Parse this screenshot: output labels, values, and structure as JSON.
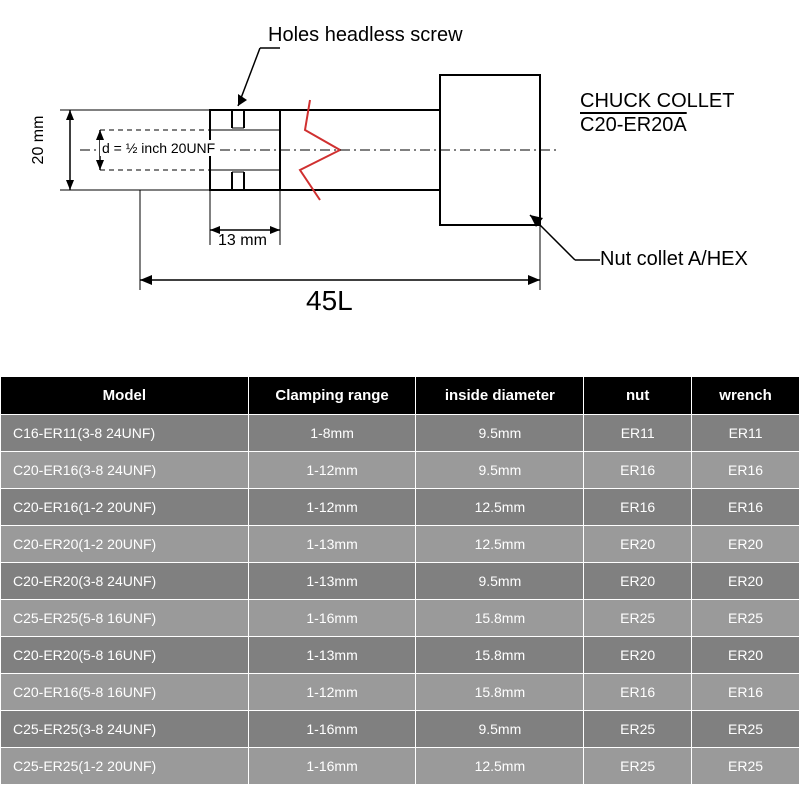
{
  "diagram": {
    "label_holes": "Holes headless screw",
    "label_thread": "d = ½ inch 20UNF",
    "label_height": "20 mm",
    "label_shank": "13 mm",
    "label_length": "45L",
    "label_title1": "CHUCK COLLET",
    "label_title2": "C20-ER20A",
    "label_nut": "Nut collet A/HEX",
    "colors": {
      "outline": "#000000",
      "break_line": "#d03030",
      "background": "#ffffff"
    },
    "fonts": {
      "label_size": 20,
      "dim_size": 16,
      "big_size": 28
    }
  },
  "table": {
    "columns": [
      "Model",
      "Clamping range",
      "inside diameter",
      "nut",
      "wrench"
    ],
    "col_widths": [
      "31%",
      "21%",
      "21%",
      "13.5%",
      "13.5%"
    ],
    "header_bg": "#000000",
    "header_fg": "#ffffff",
    "row_bg_a": "#808080",
    "row_bg_b": "#9a9a9a",
    "cell_fg": "#ffffff",
    "border_color": "#ffffff",
    "rows": [
      [
        "C16-ER11(3-8 24UNF)",
        "1-8mm",
        "9.5mm",
        "ER11",
        "ER11"
      ],
      [
        "C20-ER16(3-8 24UNF)",
        "1-12mm",
        "9.5mm",
        "ER16",
        "ER16"
      ],
      [
        "C20-ER16(1-2 20UNF)",
        "1-12mm",
        "12.5mm",
        "ER16",
        "ER16"
      ],
      [
        "C20-ER20(1-2 20UNF)",
        "1-13mm",
        "12.5mm",
        "ER20",
        "ER20"
      ],
      [
        "C20-ER20(3-8 24UNF)",
        "1-13mm",
        "9.5mm",
        "ER20",
        "ER20"
      ],
      [
        "C25-ER25(5-8 16UNF)",
        "1-16mm",
        "15.8mm",
        "ER25",
        "ER25"
      ],
      [
        "C20-ER20(5-8 16UNF)",
        "1-13mm",
        "15.8mm",
        "ER20",
        "ER20"
      ],
      [
        "C20-ER16(5-8 16UNF)",
        "1-12mm",
        "15.8mm",
        "ER16",
        "ER16"
      ],
      [
        "C25-ER25(3-8 24UNF)",
        "1-16mm",
        "9.5mm",
        "ER25",
        "ER25"
      ],
      [
        "C25-ER25(1-2 20UNF)",
        "1-16mm",
        "12.5mm",
        "ER25",
        "ER25"
      ]
    ]
  }
}
